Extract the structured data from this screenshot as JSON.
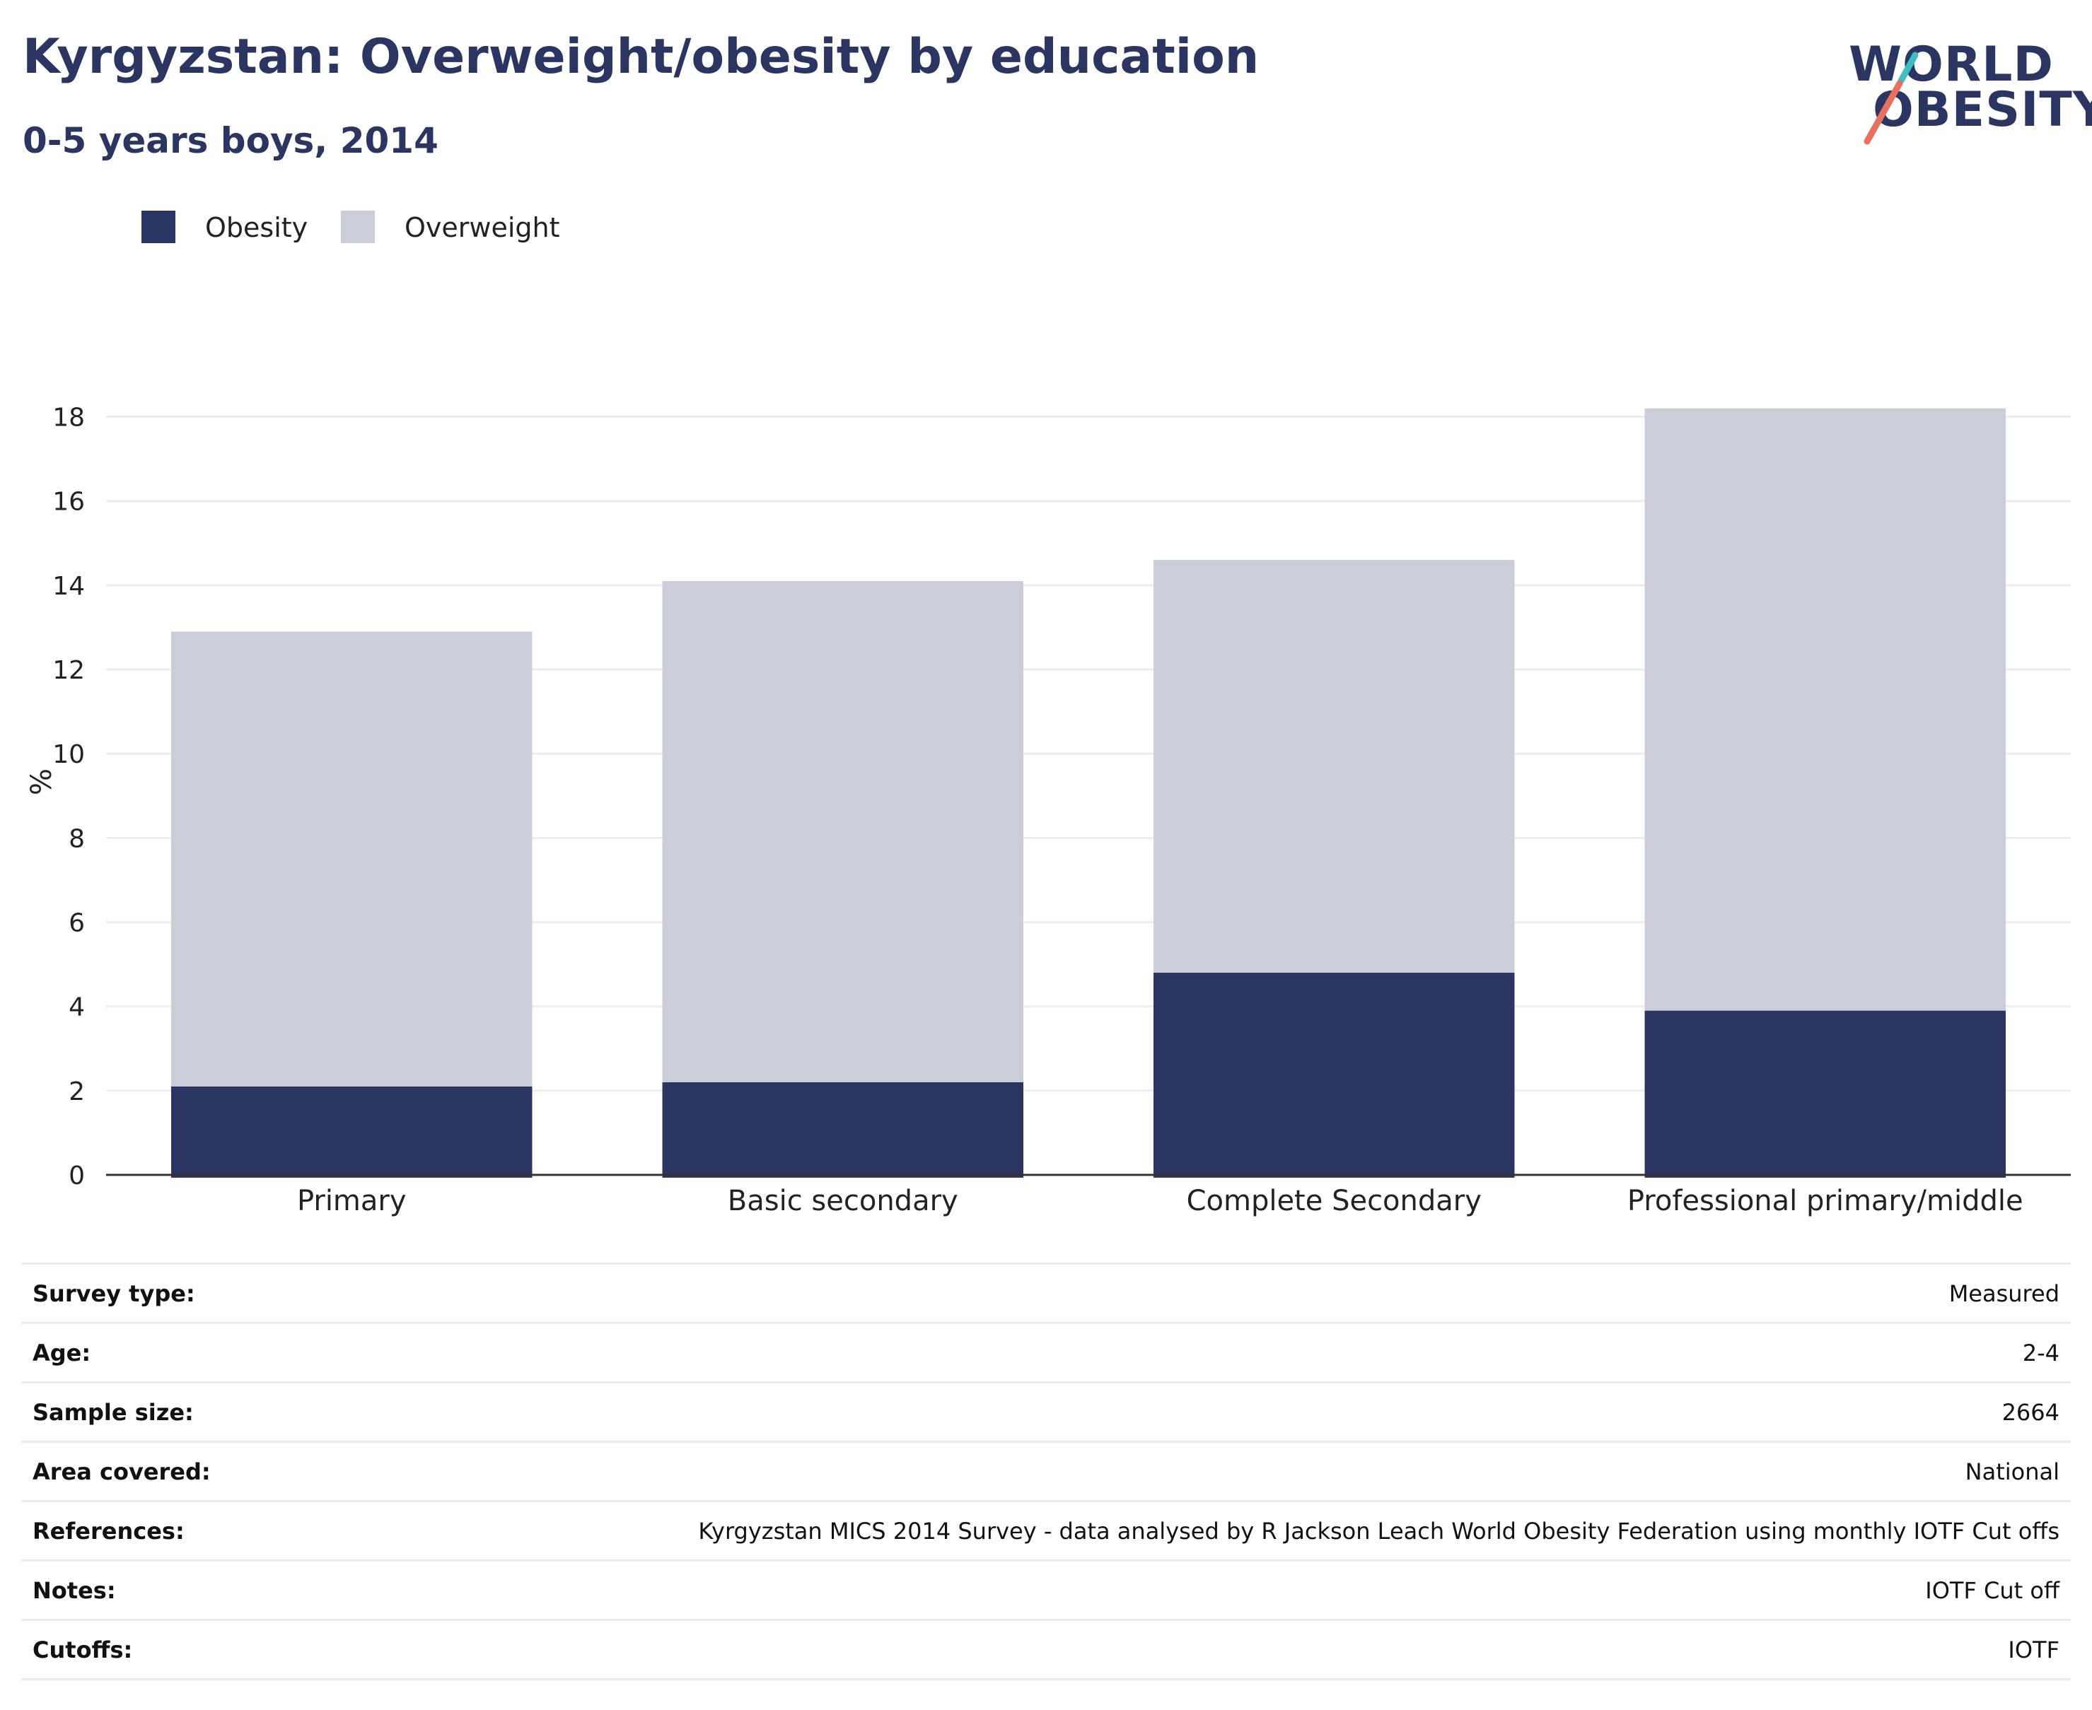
{
  "header": {
    "title": "Kyrgyzstan: Overweight/obesity by education",
    "subtitle": "0-5 years boys, 2014"
  },
  "logo": {
    "line1": "WORLD",
    "line2": "OBESITY",
    "stripe_teal": "#3bbfbf",
    "stripe_coral": "#e8705f"
  },
  "legend": {
    "items": [
      {
        "label": "Obesity",
        "color": "#2a3562"
      },
      {
        "label": "Overweight",
        "color": "#cbcdd8"
      }
    ]
  },
  "chart_data": {
    "type": "bar",
    "stacked": true,
    "categories": [
      "Primary",
      "Basic secondary",
      "Complete Secondary",
      "Professional primary/middle"
    ],
    "series": [
      {
        "name": "Obesity",
        "values": [
          2.1,
          2.2,
          4.8,
          3.9
        ],
        "color": "#2a3562"
      },
      {
        "name": "Overweight",
        "values": [
          10.8,
          11.9,
          9.8,
          14.3
        ],
        "color": "#cbcdd8"
      }
    ],
    "ylabel": "%",
    "ylim": [
      0,
      19
    ],
    "yticks": [
      0,
      2,
      4,
      6,
      8,
      10,
      12,
      14,
      16,
      18
    ],
    "grid": true,
    "legend_position": "top-left"
  },
  "info": {
    "rows": [
      {
        "key": "Survey type:",
        "value": "Measured"
      },
      {
        "key": "Age:",
        "value": "2-4"
      },
      {
        "key": "Sample size:",
        "value": "2664"
      },
      {
        "key": "Area covered:",
        "value": "National"
      },
      {
        "key": "References:",
        "value": "Kyrgyzstan MICS 2014 Survey - data analysed by R Jackson Leach World Obesity Federation using monthly IOTF Cut offs"
      },
      {
        "key": "Notes:",
        "value": "IOTF Cut off"
      },
      {
        "key": "Cutoffs:",
        "value": "IOTF"
      }
    ]
  }
}
